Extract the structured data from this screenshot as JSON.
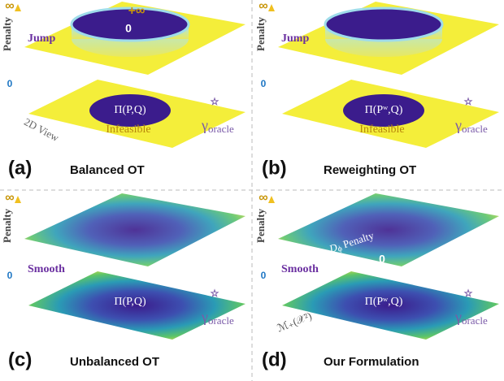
{
  "panels": [
    {
      "label": "(a)",
      "title": "Balanced OT",
      "axis_label": "Penalty",
      "axis_top": "∞",
      "axis_bottom": "0",
      "side": "Jump",
      "top_inf": "+∞",
      "top_zero": "0",
      "set": "Π(P,Q)",
      "region": "Infeasible",
      "view": "2D View",
      "gamma": "γ",
      "gamma_sub": "oracle"
    },
    {
      "label": "(b)",
      "title": "Reweighting OT",
      "axis_label": "Penalty",
      "axis_top": "∞",
      "axis_bottom": "0",
      "side": "Jump",
      "set": "Π(Pʷ,Q)",
      "region": "Infeasible",
      "gamma": "γ",
      "gamma_sub": "oracle"
    },
    {
      "label": "(c)",
      "title": "Unbalanced OT",
      "axis_label": "Penalty",
      "axis_top": "∞",
      "axis_bottom": "0",
      "side": "Smooth",
      "set": "Π(P,Q)",
      "gamma": "γ",
      "gamma_sub": "oracle"
    },
    {
      "label": "(d)",
      "title": "Our Formulation",
      "axis_label": "Penalty",
      "axis_top": "∞",
      "axis_bottom": "0",
      "side": "Smooth",
      "penalty_d": "D",
      "penalty_sub": "ϕ",
      "penalty_text": "Penalty",
      "top_zero": "0",
      "set": "Π(Pʷ,Q)",
      "measure": "ℳ₊(𝒳²)",
      "gamma": "γ",
      "gamma_sub": "oracle"
    }
  ]
}
